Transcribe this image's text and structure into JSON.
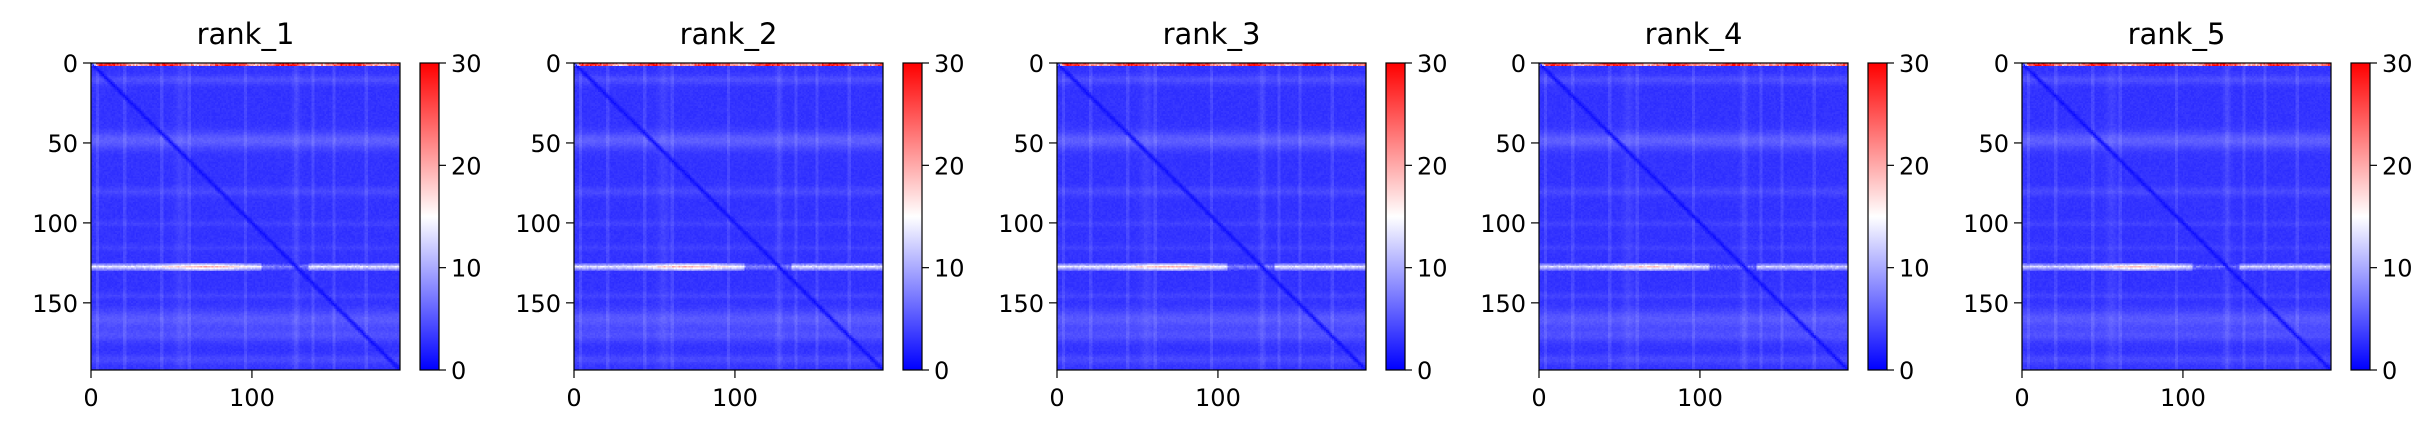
{
  "chart_data": [
    {
      "type": "heatmap",
      "title": "rank_1",
      "xlim": [
        0,
        192
      ],
      "ylim": [
        192,
        0
      ],
      "xticks": [
        "0",
        "100"
      ],
      "yticks": [
        "0",
        "50",
        "100",
        "150"
      ],
      "colorbar": {
        "min": 0,
        "max": 30,
        "ticks": [
          "0",
          "10",
          "20",
          "30"
        ],
        "colormap": "bwr"
      },
      "features": {
        "top_row_value": 24,
        "bright_band_row": 127,
        "bright_band_value": 19,
        "diagonal_value": 1,
        "background_value": 3
      }
    },
    {
      "type": "heatmap",
      "title": "rank_2",
      "xlim": [
        0,
        192
      ],
      "ylim": [
        192,
        0
      ],
      "xticks": [
        "0",
        "100"
      ],
      "yticks": [
        "0",
        "50",
        "100",
        "150"
      ],
      "colorbar": {
        "min": 0,
        "max": 30,
        "ticks": [
          "0",
          "10",
          "20",
          "30"
        ],
        "colormap": "bwr"
      },
      "features": {
        "top_row_value": 24,
        "bright_band_row": 127,
        "bright_band_value": 19,
        "diagonal_value": 1,
        "background_value": 3
      }
    },
    {
      "type": "heatmap",
      "title": "rank_3",
      "xlim": [
        0,
        192
      ],
      "ylim": [
        192,
        0
      ],
      "xticks": [
        "0",
        "100"
      ],
      "yticks": [
        "0",
        "50",
        "100",
        "150"
      ],
      "colorbar": {
        "min": 0,
        "max": 30,
        "ticks": [
          "0",
          "10",
          "20",
          "30"
        ],
        "colormap": "bwr"
      },
      "features": {
        "top_row_value": 24,
        "bright_band_row": 127,
        "bright_band_value": 19,
        "diagonal_value": 1,
        "background_value": 3
      }
    },
    {
      "type": "heatmap",
      "title": "rank_4",
      "xlim": [
        0,
        192
      ],
      "ylim": [
        192,
        0
      ],
      "xticks": [
        "0",
        "100"
      ],
      "yticks": [
        "0",
        "50",
        "100",
        "150"
      ],
      "colorbar": {
        "min": 0,
        "max": 30,
        "ticks": [
          "0",
          "10",
          "20",
          "30"
        ],
        "colormap": "bwr"
      },
      "features": {
        "top_row_value": 24,
        "bright_band_row": 127,
        "bright_band_value": 18,
        "diagonal_value": 1,
        "background_value": 3
      }
    },
    {
      "type": "heatmap",
      "title": "rank_5",
      "xlim": [
        0,
        192
      ],
      "ylim": [
        192,
        0
      ],
      "xticks": [
        "0",
        "100"
      ],
      "yticks": [
        "0",
        "50",
        "100",
        "150"
      ],
      "colorbar": {
        "min": 0,
        "max": 30,
        "ticks": [
          "0",
          "10",
          "20",
          "30"
        ],
        "colormap": "bwr"
      },
      "features": {
        "top_row_value": 24,
        "bright_band_row": 127,
        "bright_band_value": 18,
        "diagonal_value": 1,
        "background_value": 3
      }
    }
  ]
}
